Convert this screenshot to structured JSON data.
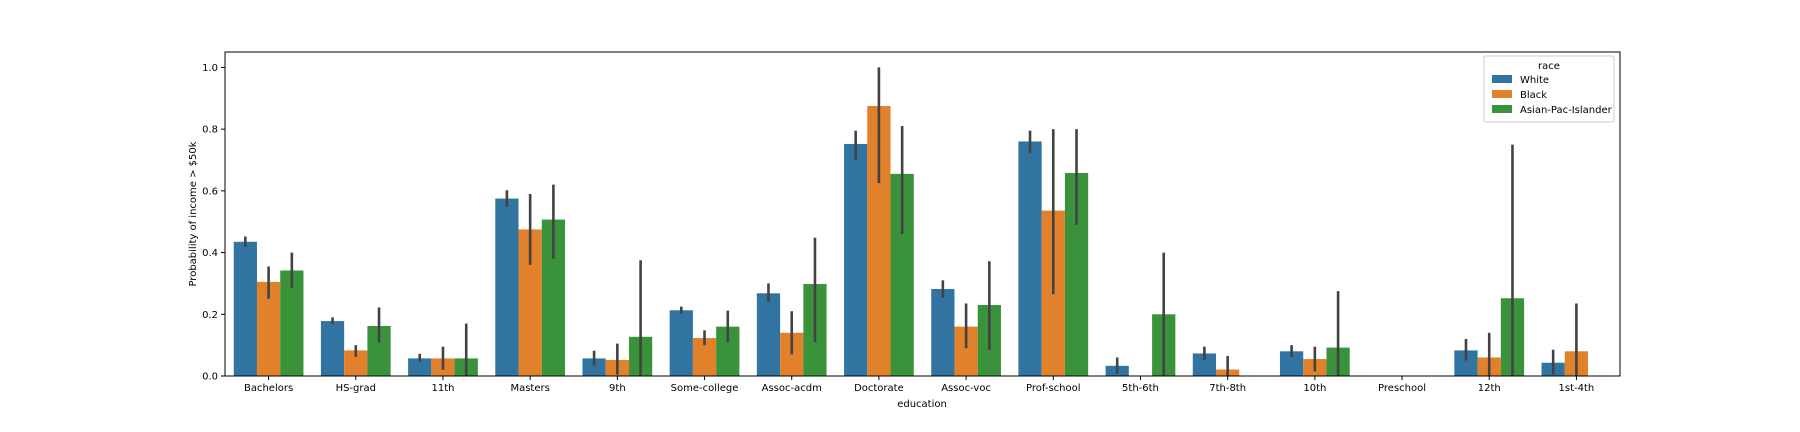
{
  "chart_data": {
    "type": "bar",
    "title": "",
    "xlabel": "education",
    "ylabel": "Probability of income > $50k",
    "ylim": [
      0,
      1.05
    ],
    "yticks": [
      "0.0",
      "0.2",
      "0.4",
      "0.6",
      "0.8",
      "1.0"
    ],
    "grid": false,
    "legend": {
      "title": "race",
      "placement": "top-right"
    },
    "categories": [
      "Bachelors",
      "HS-grad",
      "11th",
      "Masters",
      "9th",
      "Some-college",
      "Assoc-acdm",
      "Doctorate",
      "Assoc-voc",
      "Prof-school",
      "5th-6th",
      "7th-8th",
      "10th",
      "Preschool",
      "12th",
      "1st-4th"
    ],
    "series": [
      {
        "name": "White",
        "color": "#3274a1",
        "values": [
          0.435,
          0.178,
          0.057,
          0.575,
          0.057,
          0.213,
          0.268,
          0.752,
          0.282,
          0.76,
          0.033,
          0.073,
          0.08,
          0.0,
          0.083,
          0.043
        ],
        "err_low": [
          0.418,
          0.168,
          0.045,
          0.548,
          0.033,
          0.202,
          0.24,
          0.7,
          0.253,
          0.722,
          0.008,
          0.052,
          0.062,
          0.0,
          0.05,
          0.005
        ],
        "err_high": [
          0.452,
          0.19,
          0.072,
          0.602,
          0.082,
          0.225,
          0.3,
          0.795,
          0.31,
          0.795,
          0.06,
          0.095,
          0.1,
          0.0,
          0.12,
          0.085
        ]
      },
      {
        "name": "Black",
        "color": "#e1812c",
        "values": [
          0.305,
          0.083,
          0.057,
          0.475,
          0.052,
          0.123,
          0.14,
          0.875,
          0.16,
          0.536,
          null,
          0.021,
          0.055,
          null,
          0.06,
          0.08
        ],
        "err_low": [
          0.25,
          0.062,
          0.02,
          0.36,
          0.005,
          0.1,
          0.07,
          0.625,
          0.09,
          0.265,
          null,
          0.0,
          0.015,
          null,
          0.0,
          0.0
        ],
        "err_high": [
          0.355,
          0.1,
          0.095,
          0.59,
          0.105,
          0.148,
          0.21,
          1.0,
          0.235,
          0.8,
          null,
          0.065,
          0.095,
          null,
          0.14,
          0.235
        ]
      },
      {
        "name": "Asian-Pac-Islander",
        "color": "#3a923a",
        "values": [
          0.342,
          0.162,
          0.057,
          0.507,
          0.127,
          0.16,
          0.298,
          0.655,
          0.23,
          0.658,
          0.2,
          null,
          0.092,
          null,
          0.252,
          null
        ],
        "err_low": [
          0.285,
          0.108,
          0.0,
          0.38,
          0.0,
          0.11,
          0.11,
          0.46,
          0.085,
          0.49,
          0.0,
          null,
          0.0,
          null,
          0.0,
          null
        ],
        "err_high": [
          0.4,
          0.222,
          0.17,
          0.62,
          0.375,
          0.212,
          0.448,
          0.81,
          0.372,
          0.8,
          0.4,
          null,
          0.275,
          null,
          0.75,
          null
        ]
      }
    ]
  }
}
